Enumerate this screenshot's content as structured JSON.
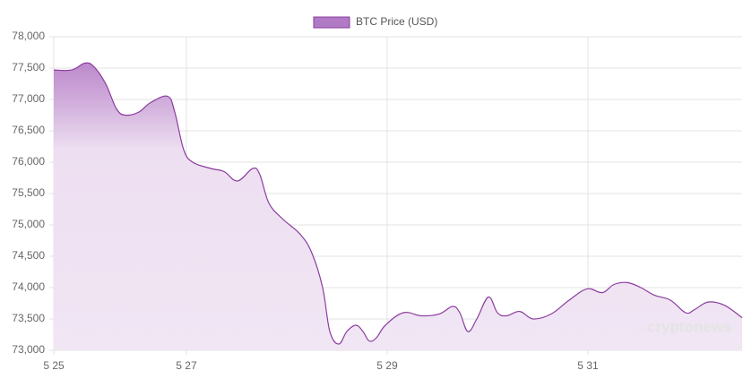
{
  "chart_data": {
    "type": "area",
    "watermark": "cryptonews",
    "x": [
      25.679,
      25.857,
      25.991,
      26.08,
      26.196,
      26.304,
      26.393,
      26.527,
      26.643,
      26.813,
      26.884,
      26.973,
      27.063,
      27.241,
      27.375,
      27.509,
      27.661,
      27.732,
      27.821,
      27.955,
      28.134,
      28.25,
      28.357,
      28.429,
      28.518,
      28.598,
      28.688,
      28.759,
      28.821,
      28.893,
      28.982,
      29.161,
      29.339,
      29.518,
      29.652,
      29.723,
      29.804,
      29.893,
      30.009,
      30.098,
      30.188,
      30.321,
      30.455,
      30.634,
      30.813,
      30.991,
      31.143,
      31.259,
      31.393,
      31.527,
      31.661,
      31.821,
      31.973,
      32.063,
      32.196,
      32.357,
      32.536
    ],
    "series": [
      {
        "name": "BTC Price (USD)",
        "color": "#8b3d9e",
        "values": [
          77470,
          77470,
          77580,
          77520,
          77250,
          76850,
          76750,
          76800,
          76950,
          77050,
          76800,
          76200,
          76000,
          75900,
          75850,
          75700,
          75900,
          75800,
          75350,
          75100,
          74850,
          74550,
          74000,
          73300,
          73100,
          73300,
          73400,
          73300,
          73150,
          73200,
          73400,
          73600,
          73550,
          73580,
          73700,
          73600,
          73300,
          73500,
          73850,
          73600,
          73550,
          73620,
          73500,
          73580,
          73800,
          73980,
          73920,
          74050,
          74080,
          74000,
          73880,
          73800,
          73600,
          73650,
          73770,
          73720,
          73520
        ]
      }
    ],
    "xlim": [
      25.679,
      32.536
    ],
    "xticks": [
      {
        "value": 25.679,
        "label": "5 25"
      },
      {
        "value": 27,
        "label": "5 27"
      },
      {
        "value": 29,
        "label": "5 29"
      },
      {
        "value": 31,
        "label": "5 31"
      }
    ],
    "ylim": [
      73000,
      78000
    ],
    "yticks": [
      {
        "value": 73000,
        "label": "73,000"
      },
      {
        "value": 73500,
        "label": "73,500"
      },
      {
        "value": 74000,
        "label": "74,000"
      },
      {
        "value": 74500,
        "label": "74,500"
      },
      {
        "value": 75000,
        "label": "75,000"
      },
      {
        "value": 75500,
        "label": "75,500"
      },
      {
        "value": 76000,
        "label": "76,000"
      },
      {
        "value": 76500,
        "label": "76,500"
      },
      {
        "value": 77000,
        "label": "77,000"
      },
      {
        "value": 77500,
        "label": "77,500"
      },
      {
        "value": 78000,
        "label": "78,000"
      }
    ],
    "grid": true,
    "legend": "top"
  }
}
